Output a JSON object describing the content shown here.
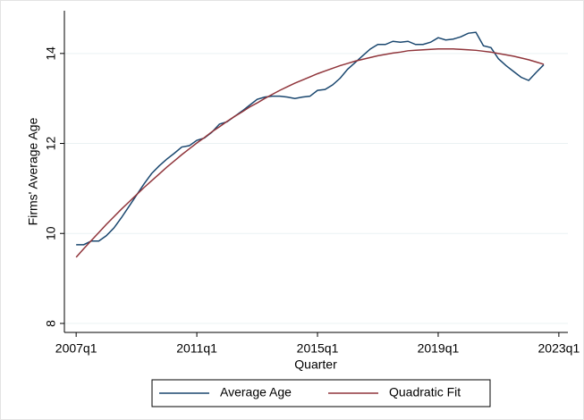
{
  "chart_data": {
    "type": "line",
    "x_label": "Quarter",
    "y_label": "Firms' Average Age",
    "x": [
      2007,
      2007.25,
      2007.5,
      2007.75,
      2008,
      2008.25,
      2008.5,
      2008.75,
      2009,
      2009.25,
      2009.5,
      2009.75,
      2010,
      2010.25,
      2010.5,
      2010.75,
      2011,
      2011.25,
      2011.5,
      2011.75,
      2012,
      2012.25,
      2012.5,
      2012.75,
      2013,
      2013.25,
      2013.5,
      2013.75,
      2014,
      2014.25,
      2014.5,
      2014.75,
      2015,
      2015.25,
      2015.5,
      2015.75,
      2016,
      2016.25,
      2016.5,
      2016.75,
      2017,
      2017.25,
      2017.5,
      2017.75,
      2018,
      2018.25,
      2018.5,
      2018.75,
      2019,
      2019.25,
      2019.5,
      2019.75,
      2020,
      2020.25,
      2020.5,
      2020.75,
      2021,
      2021.25,
      2021.5,
      2021.75,
      2022,
      2022.25,
      2022.5
    ],
    "series": [
      {
        "name": "Average Age",
        "color": "#1a476f",
        "values": [
          9.75,
          9.75,
          9.83,
          9.83,
          9.95,
          10.12,
          10.35,
          10.6,
          10.85,
          11.1,
          11.33,
          11.5,
          11.65,
          11.78,
          11.92,
          11.95,
          12.07,
          12.12,
          12.25,
          12.43,
          12.48,
          12.6,
          12.72,
          12.85,
          12.98,
          13.03,
          13.05,
          13.05,
          13.03,
          13.0,
          13.03,
          13.05,
          13.18,
          13.2,
          13.3,
          13.45,
          13.65,
          13.8,
          13.95,
          14.1,
          14.2,
          14.2,
          14.27,
          14.25,
          14.27,
          14.2,
          14.2,
          14.25,
          14.35,
          14.3,
          14.32,
          14.37,
          14.45,
          14.47,
          14.17,
          14.13,
          13.88,
          13.73,
          13.6,
          13.47,
          13.4,
          13.58,
          13.75
        ]
      },
      {
        "name": "Quadratic Fit",
        "color": "#90353b",
        "values": [
          9.47,
          9.66,
          9.84,
          10.02,
          10.2,
          10.37,
          10.54,
          10.7,
          10.86,
          11.02,
          11.17,
          11.32,
          11.47,
          11.61,
          11.75,
          11.88,
          12.01,
          12.13,
          12.26,
          12.37,
          12.49,
          12.6,
          12.7,
          12.81,
          12.9,
          13.0,
          13.09,
          13.18,
          13.26,
          13.34,
          13.41,
          13.48,
          13.55,
          13.61,
          13.67,
          13.73,
          13.78,
          13.83,
          13.87,
          13.91,
          13.95,
          13.98,
          14.01,
          14.03,
          14.06,
          14.07,
          14.08,
          14.09,
          14.1,
          14.1,
          14.1,
          14.09,
          14.08,
          14.07,
          14.05,
          14.03,
          14.0,
          13.97,
          13.94,
          13.9,
          13.86,
          13.81,
          13.76
        ]
      }
    ],
    "xlim": [
      2006.61,
      2023.3
    ],
    "xticks": [
      {
        "value": 2007,
        "label": "2007q1"
      },
      {
        "value": 2011,
        "label": "2011q1"
      },
      {
        "value": 2015,
        "label": "2015q1"
      },
      {
        "value": 2019,
        "label": "2019q1"
      },
      {
        "value": 2023,
        "label": "2023q1"
      }
    ],
    "ylim": [
      7.8,
      14.95
    ],
    "yticks": [
      8,
      10,
      12,
      14
    ],
    "grid": true,
    "legend": "bottom"
  }
}
